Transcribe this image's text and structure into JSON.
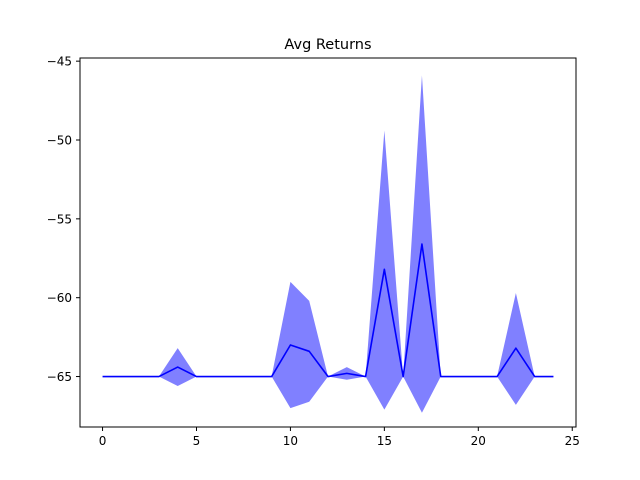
{
  "chart_data": {
    "type": "line",
    "title": "Avg Returns",
    "xlabel": "",
    "ylabel": "",
    "xlim": [
      -1.2,
      25.2
    ],
    "ylim": [
      -68.2,
      -44.8
    ],
    "xticks": [
      0,
      5,
      10,
      15,
      20,
      25
    ],
    "yticks": [
      -45,
      -50,
      -55,
      -60,
      -65
    ],
    "ytick_labels": [
      "−45",
      "−50",
      "−55",
      "−60",
      "−65"
    ],
    "grid": false,
    "legend": "none",
    "colors": {
      "line": "#0000ff",
      "band": "#8080ff"
    },
    "series": [
      {
        "x": [
          0,
          1,
          2,
          3,
          4,
          5,
          6,
          7,
          8,
          9,
          10,
          11,
          12,
          13,
          14,
          15,
          16,
          17,
          18,
          19,
          20,
          21,
          22,
          23,
          24
        ],
        "mean": [
          -65,
          -65,
          -65,
          -65,
          -64.4,
          -65,
          -65,
          -65,
          -65,
          -65,
          -63,
          -63.4,
          -65,
          -64.8,
          -65,
          -58.2,
          -65,
          -56.6,
          -65,
          -65,
          -65,
          -65,
          -63.2,
          -65,
          -65
        ],
        "upper": [
          -65,
          -65,
          -65,
          -65,
          -63.2,
          -65,
          -65,
          -65,
          -65,
          -65,
          -59,
          -60.2,
          -65,
          -64.4,
          -65,
          -49.4,
          -65,
          -45.9,
          -65,
          -65,
          -65,
          -65,
          -59.7,
          -65,
          -65
        ],
        "lower": [
          -65,
          -65,
          -65,
          -65,
          -65.6,
          -65,
          -65,
          -65,
          -65,
          -65,
          -67,
          -66.6,
          -65,
          -65.2,
          -65,
          -67.1,
          -65,
          -67.3,
          -65,
          -65,
          -65,
          -65,
          -66.8,
          -65,
          -65
        ]
      }
    ]
  }
}
